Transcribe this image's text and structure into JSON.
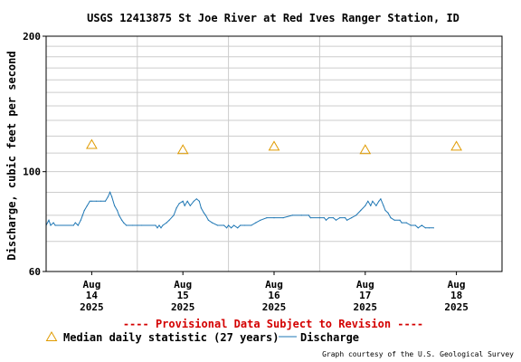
{
  "chart_data": {
    "type": "line",
    "title": "USGS 12413875 St Joe River at Red Ives Ranger Station, ID",
    "ylabel": "Discharge, cubic feet per second",
    "xlabel": "",
    "y_scale": "log",
    "ylim": [
      60,
      200
    ],
    "y_ticks": [
      60,
      100,
      200
    ],
    "y_minor_gridlines": [
      70,
      80,
      90,
      110,
      120,
      130,
      140,
      150,
      160,
      170,
      180,
      190
    ],
    "grid": true,
    "x_ticks": [
      {
        "month": "Aug",
        "day": "14",
        "year": "2025",
        "t": 0
      },
      {
        "month": "Aug",
        "day": "15",
        "year": "2025",
        "t": 1
      },
      {
        "month": "Aug",
        "day": "16",
        "year": "2025",
        "t": 2
      },
      {
        "month": "Aug",
        "day": "17",
        "year": "2025",
        "t": 3
      },
      {
        "month": "Aug",
        "day": "18",
        "year": "2025",
        "t": 4
      }
    ],
    "series": [
      {
        "name": "Discharge",
        "color": "#1f77b4",
        "points": [
          [
            -0.5,
            76
          ],
          [
            -0.47,
            78
          ],
          [
            -0.45,
            76
          ],
          [
            -0.42,
            77
          ],
          [
            -0.4,
            76
          ],
          [
            -0.2,
            76
          ],
          [
            -0.18,
            77
          ],
          [
            -0.15,
            76
          ],
          [
            -0.12,
            78
          ],
          [
            -0.1,
            80
          ],
          [
            -0.08,
            82
          ],
          [
            -0.05,
            84
          ],
          [
            -0.02,
            86
          ],
          [
            0.0,
            86
          ],
          [
            0.05,
            86
          ],
          [
            0.1,
            86
          ],
          [
            0.15,
            86
          ],
          [
            0.18,
            88
          ],
          [
            0.2,
            90
          ],
          [
            0.22,
            88
          ],
          [
            0.25,
            84
          ],
          [
            0.28,
            82
          ],
          [
            0.3,
            80
          ],
          [
            0.33,
            78
          ],
          [
            0.35,
            77
          ],
          [
            0.38,
            76
          ],
          [
            0.45,
            76
          ],
          [
            0.55,
            76
          ],
          [
            0.7,
            76
          ],
          [
            0.72,
            75
          ],
          [
            0.74,
            76
          ],
          [
            0.76,
            75
          ],
          [
            0.78,
            76
          ],
          [
            0.82,
            77
          ],
          [
            0.85,
            78
          ],
          [
            0.9,
            80
          ],
          [
            0.93,
            83
          ],
          [
            0.96,
            85
          ],
          [
            1.0,
            86
          ],
          [
            1.02,
            84
          ],
          [
            1.05,
            86
          ],
          [
            1.08,
            84
          ],
          [
            1.12,
            86
          ],
          [
            1.15,
            87
          ],
          [
            1.18,
            86
          ],
          [
            1.2,
            83
          ],
          [
            1.23,
            81
          ],
          [
            1.25,
            80
          ],
          [
            1.28,
            78
          ],
          [
            1.32,
            77
          ],
          [
            1.38,
            76
          ],
          [
            1.45,
            76
          ],
          [
            1.48,
            75
          ],
          [
            1.5,
            76
          ],
          [
            1.53,
            75
          ],
          [
            1.56,
            76
          ],
          [
            1.6,
            75
          ],
          [
            1.63,
            76
          ],
          [
            1.68,
            76
          ],
          [
            1.75,
            76
          ],
          [
            1.8,
            77
          ],
          [
            1.85,
            78
          ],
          [
            1.92,
            79
          ],
          [
            2.0,
            79
          ],
          [
            2.1,
            79
          ],
          [
            2.2,
            80
          ],
          [
            2.3,
            80
          ],
          [
            2.38,
            80
          ],
          [
            2.4,
            79
          ],
          [
            2.5,
            79
          ],
          [
            2.55,
            79
          ],
          [
            2.57,
            78
          ],
          [
            2.6,
            79
          ],
          [
            2.65,
            79
          ],
          [
            2.68,
            78
          ],
          [
            2.72,
            79
          ],
          [
            2.78,
            79
          ],
          [
            2.8,
            78
          ],
          [
            2.85,
            79
          ],
          [
            2.9,
            80
          ],
          [
            2.95,
            82
          ],
          [
            3.0,
            84
          ],
          [
            3.03,
            86
          ],
          [
            3.06,
            84
          ],
          [
            3.08,
            86
          ],
          [
            3.12,
            84
          ],
          [
            3.15,
            86
          ],
          [
            3.17,
            87
          ],
          [
            3.2,
            84
          ],
          [
            3.22,
            82
          ],
          [
            3.25,
            81
          ],
          [
            3.28,
            79
          ],
          [
            3.32,
            78
          ],
          [
            3.38,
            78
          ],
          [
            3.4,
            77
          ],
          [
            3.45,
            77
          ],
          [
            3.5,
            76
          ],
          [
            3.55,
            76
          ],
          [
            3.58,
            75
          ],
          [
            3.62,
            76
          ],
          [
            3.66,
            75
          ],
          [
            3.7,
            75
          ],
          [
            3.75,
            75
          ]
        ]
      },
      {
        "name": "Median daily statistic (27 years)",
        "color": "#e09b00",
        "marker": "triangle",
        "points": [
          [
            0.0,
            115
          ],
          [
            1.0,
            112
          ],
          [
            2.0,
            114
          ],
          [
            3.0,
            112
          ],
          [
            4.0,
            114
          ]
        ]
      }
    ],
    "legend_placement": "bottom-left",
    "annotations": [
      "---- Provisional Data Subject to Revision ----"
    ],
    "credit": "Graph courtesy of the U.S. Geological Survey"
  }
}
